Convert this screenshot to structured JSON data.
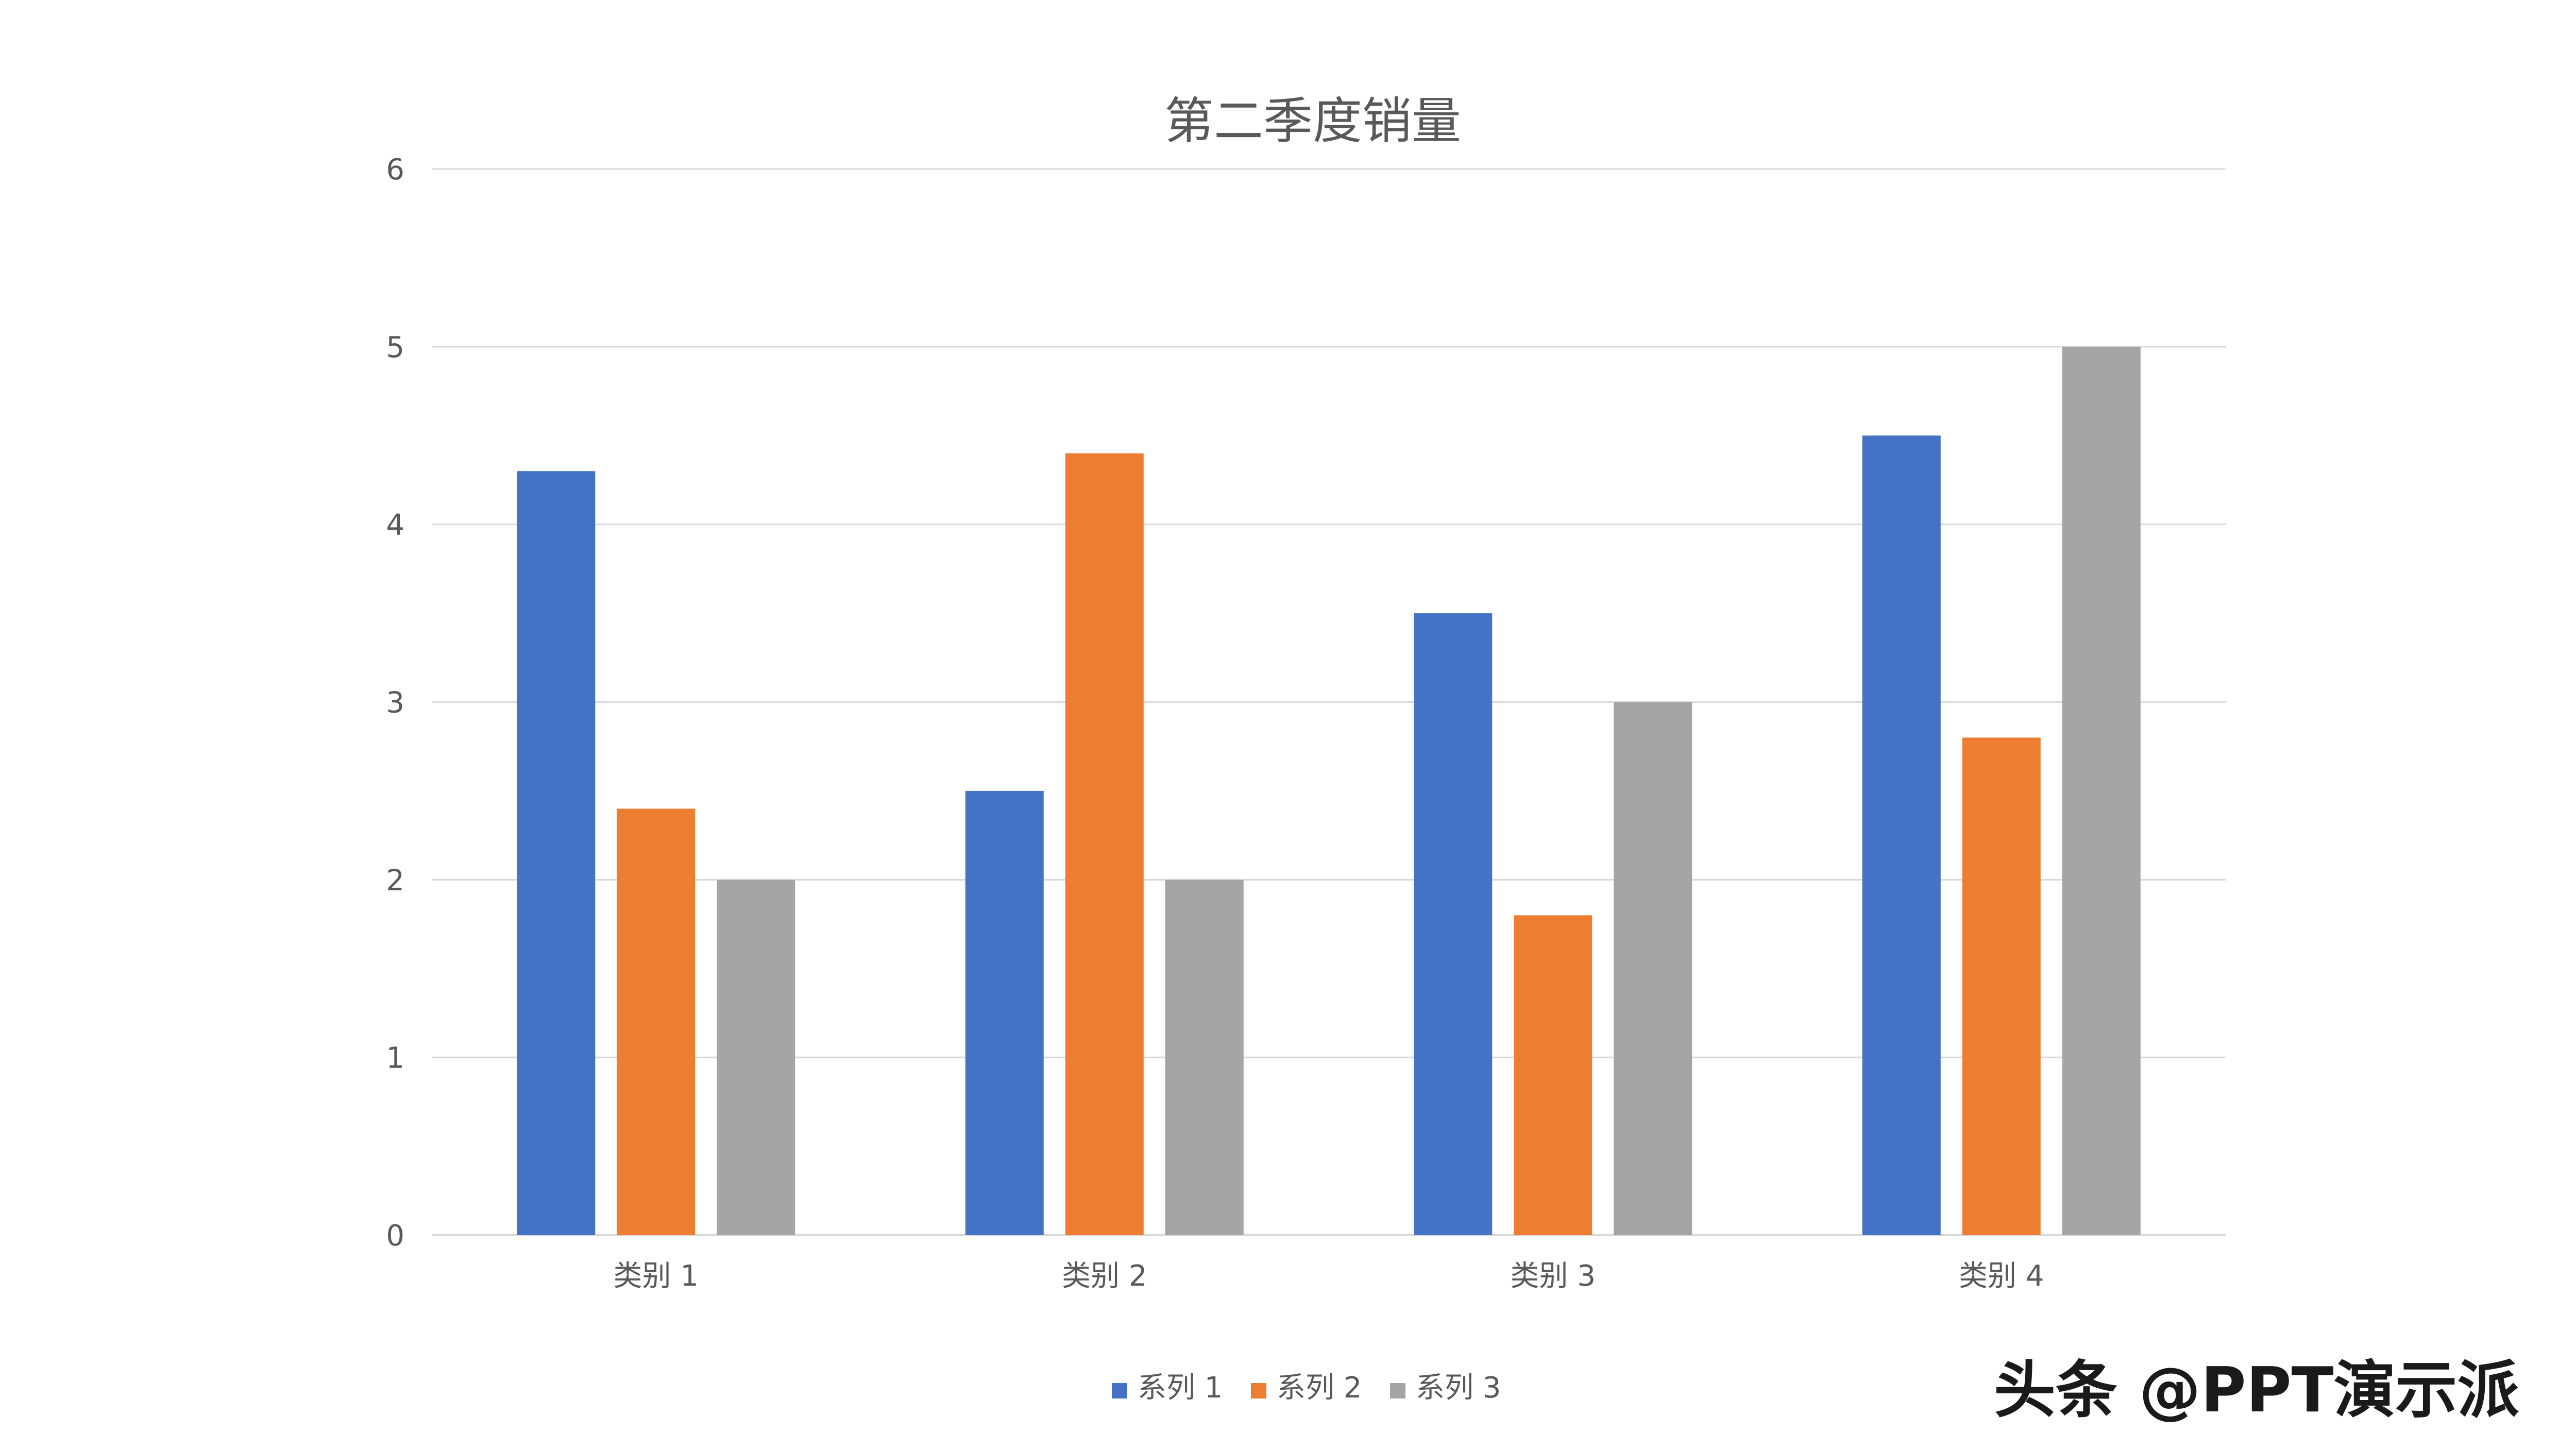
{
  "chart_data": {
    "type": "bar",
    "title": "第二季度销量",
    "xlabel": "",
    "ylabel": "",
    "categories": [
      "类别 1",
      "类别 2",
      "类别 3",
      "类别 4"
    ],
    "series": [
      {
        "name": "系列 1",
        "values": [
          4.3,
          2.5,
          3.5,
          4.5
        ]
      },
      {
        "name": "系列 2",
        "values": [
          2.4,
          4.4,
          1.8,
          2.8
        ]
      },
      {
        "name": "系列 3",
        "values": [
          2.0,
          2.0,
          3.0,
          5.0
        ]
      }
    ],
    "ylim": [
      0,
      6
    ],
    "yticks": [
      "0",
      "1",
      "2",
      "3",
      "4",
      "5",
      "6"
    ],
    "grid": true,
    "legend": "bottom-center"
  },
  "colors": {
    "series": [
      "#4472C4",
      "#ED7D31",
      "#A5A5A5"
    ],
    "grid": "#D9D9D9",
    "text": "#595959"
  },
  "watermark": "头条 @PPT演示派"
}
